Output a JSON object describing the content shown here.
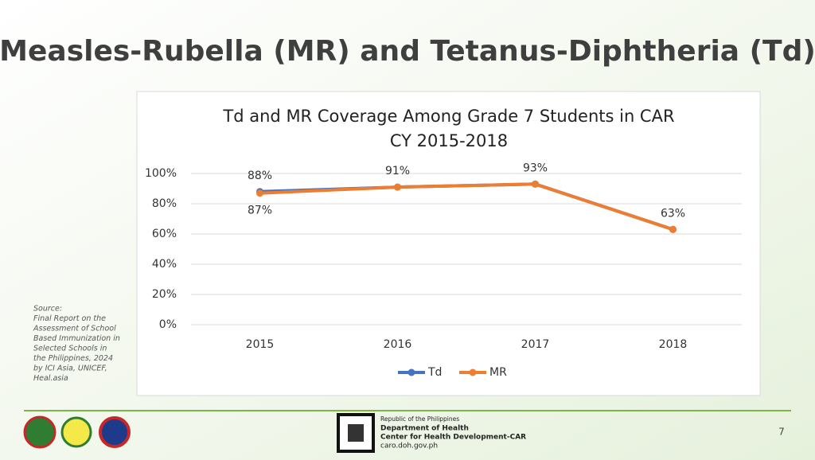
{
  "slide": {
    "title": "Measles-Rubella (MR) and Tetanus-Diphtheria (Td)",
    "source": [
      "Source:",
      "Final Report on the",
      "Assessment of School",
      "Based Immunization in",
      "Selected Schools in",
      "the Philippines, 2024",
      "by ICI Asia, UNICEF,",
      "Heal.asia"
    ],
    "footer": [
      "Republic of the Philippines",
      "Department of Health",
      "Center for Health Development-CAR",
      "caro.doh.gov.ph"
    ],
    "page": "7"
  },
  "chart_data": {
    "type": "line",
    "title": "Td and MR Coverage Among Grade 7 Students in CAR",
    "subtitle": "CY 2015-2018",
    "categories": [
      "2015",
      "2016",
      "2017",
      "2018"
    ],
    "series": [
      {
        "name": "Td",
        "color": "#4472c4",
        "values": [
          88,
          91,
          93,
          63
        ],
        "value_labels": [
          "88%",
          "91%",
          "93%",
          "63%"
        ]
      },
      {
        "name": "MR",
        "color": "#ed7d31",
        "values": [
          87,
          91,
          93,
          63
        ],
        "value_labels": [
          "87%",
          null,
          null,
          null
        ]
      }
    ],
    "ylim": [
      0,
      100
    ],
    "yticks": [
      {
        "value": 0,
        "label": "0%"
      },
      {
        "value": 20,
        "label": "20%"
      },
      {
        "value": 40,
        "label": "40%"
      },
      {
        "value": 60,
        "label": "60%"
      },
      {
        "value": 80,
        "label": "80%"
      },
      {
        "value": 100,
        "label": "100%"
      }
    ],
    "grid": true,
    "legend": "bottom"
  }
}
